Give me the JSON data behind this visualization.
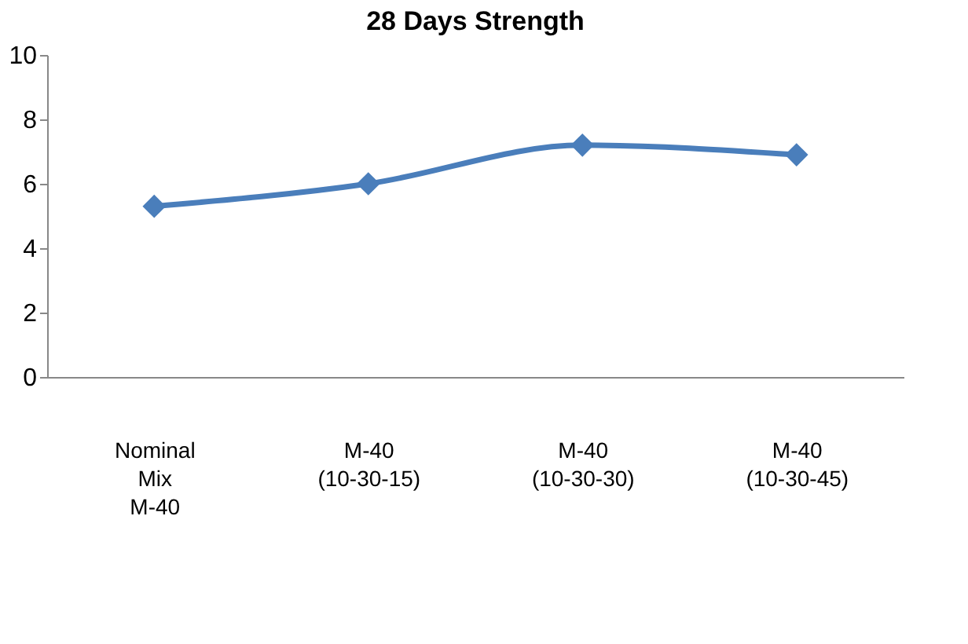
{
  "chart_data": {
    "type": "line",
    "title": "28 Days  Strength",
    "categories": [
      "Nominal Mix M-40",
      "M-40 (10-30-15)",
      "M-40 (10-30-30)",
      "M-40 (10-30-45)"
    ],
    "series": [
      {
        "color": "#4a7ebb",
        "values": [
          5.3,
          6.0,
          7.2,
          6.9
        ]
      }
    ],
    "ylim": [
      0,
      10
    ],
    "yticks": [
      0,
      2,
      4,
      6,
      8,
      10
    ],
    "grid": false,
    "legend": false,
    "marker": "diamond",
    "line_style": "solid"
  }
}
